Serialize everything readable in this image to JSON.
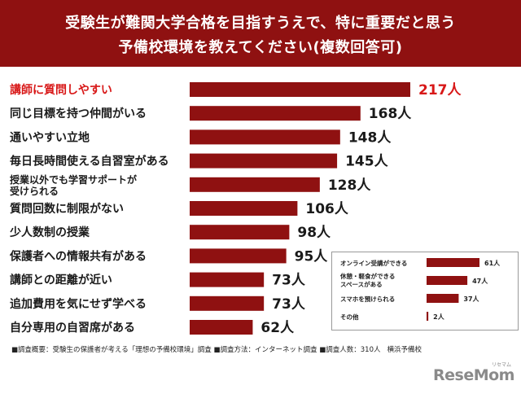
{
  "header": {
    "title_line1": "受験生が難関大学合格を目指すうえで、特に重要だと思う",
    "title_line2": "予備校環境を教えてください(複数回答可)"
  },
  "colors": {
    "bar": "#8f1111",
    "highlight": "#d81818",
    "header_bg": "#8f1111"
  },
  "chart_data": [
    {
      "type": "bar",
      "orientation": "horizontal",
      "categories": [
        [
          "講師に質問しやすい"
        ],
        [
          "同じ目標を持つ仲間がいる"
        ],
        [
          "通いやすい立地"
        ],
        [
          "毎日長時間使える自習室がある"
        ],
        [
          "授業以外でも学習サポートが",
          "受けられる"
        ],
        [
          "質問回数に制限がない"
        ],
        [
          "少人数制の授業"
        ],
        [
          "保護者への情報共有がある"
        ],
        [
          "講師との距離が近い"
        ],
        [
          "追加費用を気にせず学べる"
        ],
        [
          "自分専用の自習席がある"
        ]
      ],
      "values": [
        217,
        168,
        148,
        145,
        128,
        106,
        98,
        95,
        73,
        73,
        62
      ],
      "value_labels": [
        "217人",
        "168人",
        "148人",
        "145人",
        "128人",
        "106人",
        "98人",
        "95人",
        "73人",
        "73人",
        "62人"
      ],
      "highlight_index": 0,
      "unit": "人"
    },
    {
      "type": "bar",
      "orientation": "horizontal",
      "legend_placement": "bottom-right inset",
      "categories": [
        [
          "オンライン受講ができる"
        ],
        [
          "休憩・軽食ができる",
          "スペースがある"
        ],
        [
          "スマホを預けられる"
        ],
        [
          "その他"
        ]
      ],
      "values": [
        61,
        47,
        37,
        2
      ],
      "value_labels": [
        "61人",
        "47人",
        "37人",
        "2人"
      ],
      "unit": "人"
    }
  ],
  "footer": {
    "note": "■調査概要：受験生の保護者が考える「理想の予備校環境」調査 ■調査方法：インターネット調査 ■調査人数：310人",
    "org": "横浜予備校"
  },
  "logo": {
    "text": "ReseMom",
    "ruby": "リセマム"
  }
}
